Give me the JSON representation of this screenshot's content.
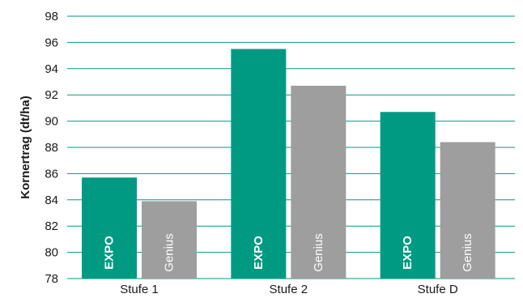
{
  "chart_data": {
    "type": "bar",
    "title": "",
    "ylabel": "Kornertrag (dt/ha)",
    "xlabel": "",
    "categories": [
      "Stufe 1",
      "Stufe 2",
      "Stufe D"
    ],
    "series": [
      {
        "name": "EXPO",
        "values": [
          85.7,
          95.5,
          90.7
        ],
        "color": "#009a82",
        "label_weight": "bold"
      },
      {
        "name": "Genius",
        "values": [
          83.9,
          92.7,
          88.4
        ],
        "color": "#9d9e9d",
        "label_weight": "normal"
      }
    ],
    "ylim": [
      78,
      98
    ],
    "yticks": [
      78,
      80,
      82,
      84,
      86,
      88,
      90,
      92,
      94,
      96,
      98
    ],
    "grid": true,
    "grid_color": "#009a82",
    "legend": "none"
  }
}
